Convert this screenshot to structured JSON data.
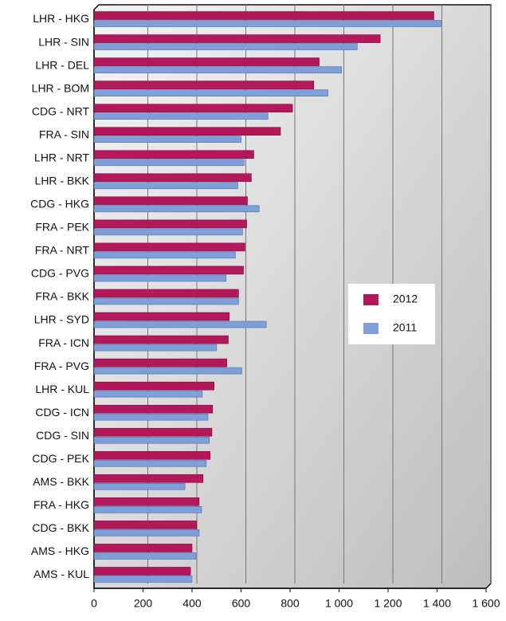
{
  "chart_data": {
    "type": "bar",
    "orientation": "horizontal",
    "categories": [
      "LHR - HKG",
      "LHR - SIN",
      "LHR - DEL",
      "LHR - BOM",
      "CDG - NRT",
      "FRA - SIN",
      "LHR - NRT",
      "LHR - BKK",
      "CDG - HKG",
      "FRA - PEK",
      "FRA - NRT",
      "CDG - PVG",
      "FRA - BKK",
      "LHR - SYD",
      "FRA - ICN",
      "FRA - PVG",
      "LHR - KUL",
      "CDG - ICN",
      "CDG - SIN",
      "CDG - PEK",
      "AMS - BKK",
      "FRA - HKG",
      "CDG - BKK",
      "AMS - HKG",
      "AMS - KUL"
    ],
    "series": [
      {
        "name": "2012",
        "color": "#b5185a",
        "values": [
          1387,
          1168,
          919,
          897,
          810,
          761,
          652,
          642,
          626,
          623,
          616,
          610,
          590,
          552,
          548,
          542,
          490,
          484,
          481,
          474,
          445,
          429,
          419,
          400,
          394
        ]
      },
      {
        "name": "2011",
        "color": "#7f9fd8",
        "values": [
          1416,
          1074,
          1010,
          955,
          710,
          600,
          613,
          587,
          674,
          606,
          577,
          539,
          590,
          703,
          500,
          603,
          442,
          465,
          471,
          458,
          371,
          439,
          429,
          416,
          400
        ]
      }
    ],
    "xlim": [
      0,
      1600
    ],
    "xticks": [
      0,
      200,
      400,
      600,
      800,
      {
        "value": 1000,
        "label": "1 000"
      },
      {
        "value": 1200,
        "label": "1 200"
      },
      {
        "value": 1400,
        "label": "1 400"
      },
      {
        "value": 1600,
        "label": "1 600"
      }
    ],
    "grid": true,
    "legend": "right"
  }
}
